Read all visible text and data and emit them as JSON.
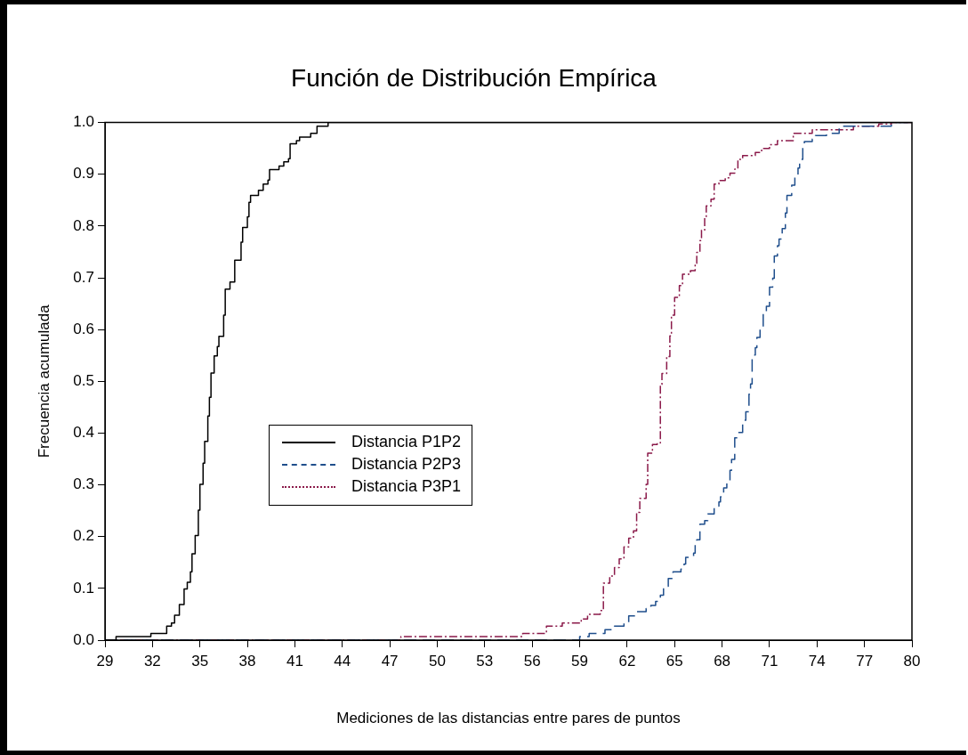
{
  "chart_data": {
    "type": "step",
    "title": "Función de Distribución Empírica",
    "xlabel": "Mediciones de las distancias entre pares de puntos",
    "ylabel": "Frecuencia acumulada",
    "xlim": [
      29,
      80
    ],
    "xticks": [
      29,
      32,
      35,
      38,
      41,
      44,
      47,
      50,
      53,
      56,
      59,
      62,
      65,
      68,
      71,
      74,
      77,
      80
    ],
    "ylim": [
      0,
      1
    ],
    "yticks": [
      {
        "value": 0,
        "label": "0.0"
      },
      {
        "value": 0.1,
        "label": "0.1"
      },
      {
        "value": 0.2,
        "label": "0.2"
      },
      {
        "value": 0.3,
        "label": "0.3"
      },
      {
        "value": 0.4,
        "label": "0.4"
      },
      {
        "value": 0.5,
        "label": "0.5"
      },
      {
        "value": 0.6,
        "label": "0.6"
      },
      {
        "value": 0.7,
        "label": "0.7"
      },
      {
        "value": 0.8,
        "label": "0.8"
      },
      {
        "value": 0.9,
        "label": "0.9"
      },
      {
        "value": 1,
        "label": "1.0"
      }
    ],
    "grid": false,
    "legend": "left",
    "marker": "none",
    "series": [
      {
        "name": "Distancia P1P2",
        "color": "#000000",
        "line_style": "solid",
        "x": [
          29,
          29.7,
          31.9,
          32.9,
          33.2,
          33.4,
          33.7,
          34.0,
          34.2,
          34.4,
          34.5,
          34.7,
          34.9,
          35.0,
          35.2,
          35.3,
          35.5,
          35.6,
          35.7,
          35.9,
          36.1,
          36.2,
          36.5,
          36.6,
          36.9,
          37.2,
          37.6,
          37.7,
          38.0,
          38.1,
          38.2,
          38.7,
          39.0,
          39.3,
          39.4,
          40.0,
          40.3,
          40.6,
          40.7,
          41.1,
          41.3,
          42.0,
          42.4,
          43.1,
          80
        ],
        "values": [
          0,
          0.007,
          0.013,
          0.027,
          0.033,
          0.048,
          0.069,
          0.099,
          0.112,
          0.132,
          0.167,
          0.202,
          0.251,
          0.301,
          0.342,
          0.384,
          0.433,
          0.469,
          0.516,
          0.549,
          0.567,
          0.587,
          0.628,
          0.678,
          0.692,
          0.734,
          0.769,
          0.797,
          0.818,
          0.846,
          0.859,
          0.869,
          0.881,
          0.889,
          0.909,
          0.916,
          0.924,
          0.93,
          0.959,
          0.965,
          0.972,
          0.979,
          0.993,
          1,
          1
        ]
      },
      {
        "name": "Distancia P2P3",
        "color": "#1f4e8c",
        "line_style": "dashed",
        "x": [
          29,
          59.0,
          59.6,
          60.6,
          61.2,
          61.8,
          62.1,
          62.5,
          63.2,
          63.5,
          63.8,
          64.1,
          64.3,
          64.6,
          64.9,
          65.4,
          65.6,
          65.7,
          66.2,
          66.3,
          66.4,
          66.6,
          66.9,
          67.1,
          67.5,
          67.8,
          67.9,
          68.1,
          68.3,
          68.5,
          68.6,
          68.8,
          69.0,
          69.3,
          69.5,
          69.7,
          69.8,
          69.9,
          70.1,
          70.2,
          70.4,
          70.6,
          70.8,
          71.0,
          71.2,
          71.3,
          71.5,
          71.6,
          71.8,
          72.0,
          72.1,
          72.4,
          72.6,
          72.8,
          72.9,
          73.1,
          73.2,
          73.7,
          73.9,
          74.6,
          75.4,
          78.7,
          80
        ],
        "values": [
          0,
          0.007,
          0.013,
          0.02,
          0.027,
          0.033,
          0.047,
          0.055,
          0.061,
          0.067,
          0.075,
          0.087,
          0.104,
          0.119,
          0.132,
          0.137,
          0.147,
          0.16,
          0.168,
          0.188,
          0.194,
          0.224,
          0.231,
          0.244,
          0.259,
          0.267,
          0.277,
          0.294,
          0.307,
          0.328,
          0.349,
          0.391,
          0.401,
          0.425,
          0.441,
          0.475,
          0.495,
          0.551,
          0.565,
          0.585,
          0.605,
          0.635,
          0.645,
          0.682,
          0.699,
          0.742,
          0.762,
          0.775,
          0.795,
          0.825,
          0.859,
          0.879,
          0.896,
          0.912,
          0.929,
          0.952,
          0.963,
          0.968,
          0.975,
          0.979,
          0.993,
          1,
          1
        ]
      },
      {
        "name": "Distancia P3P1",
        "color": "#8b1a4a",
        "line_style": "dotted",
        "x": [
          29,
          47.7,
          55.4,
          56.9,
          57.9,
          59.1,
          59.5,
          60.3,
          60.5,
          60.9,
          61.2,
          61.5,
          61.8,
          62.1,
          62.4,
          62.6,
          62.8,
          63.2,
          63.3,
          63.6,
          63.9,
          64.1,
          64.2,
          64.5,
          64.7,
          64.8,
          65.0,
          65.3,
          65.5,
          66.0,
          66.3,
          66.4,
          66.6,
          66.7,
          66.9,
          67.0,
          67.3,
          67.5,
          67.8,
          68.2,
          68.5,
          68.8,
          69.0,
          69.3,
          70.1,
          70.5,
          71.0,
          71.5,
          72.5,
          73.7,
          76.3,
          77.9,
          78.7,
          80
        ],
        "values": [
          0,
          0.007,
          0.013,
          0.027,
          0.033,
          0.041,
          0.05,
          0.057,
          0.11,
          0.124,
          0.14,
          0.157,
          0.18,
          0.197,
          0.211,
          0.247,
          0.274,
          0.301,
          0.361,
          0.378,
          0.381,
          0.494,
          0.515,
          0.548,
          0.588,
          0.628,
          0.662,
          0.685,
          0.707,
          0.714,
          0.728,
          0.749,
          0.772,
          0.792,
          0.816,
          0.839,
          0.852,
          0.881,
          0.888,
          0.893,
          0.902,
          0.91,
          0.929,
          0.936,
          0.942,
          0.95,
          0.957,
          0.965,
          0.979,
          0.986,
          0.993,
          0.997,
          1,
          1
        ]
      }
    ]
  }
}
